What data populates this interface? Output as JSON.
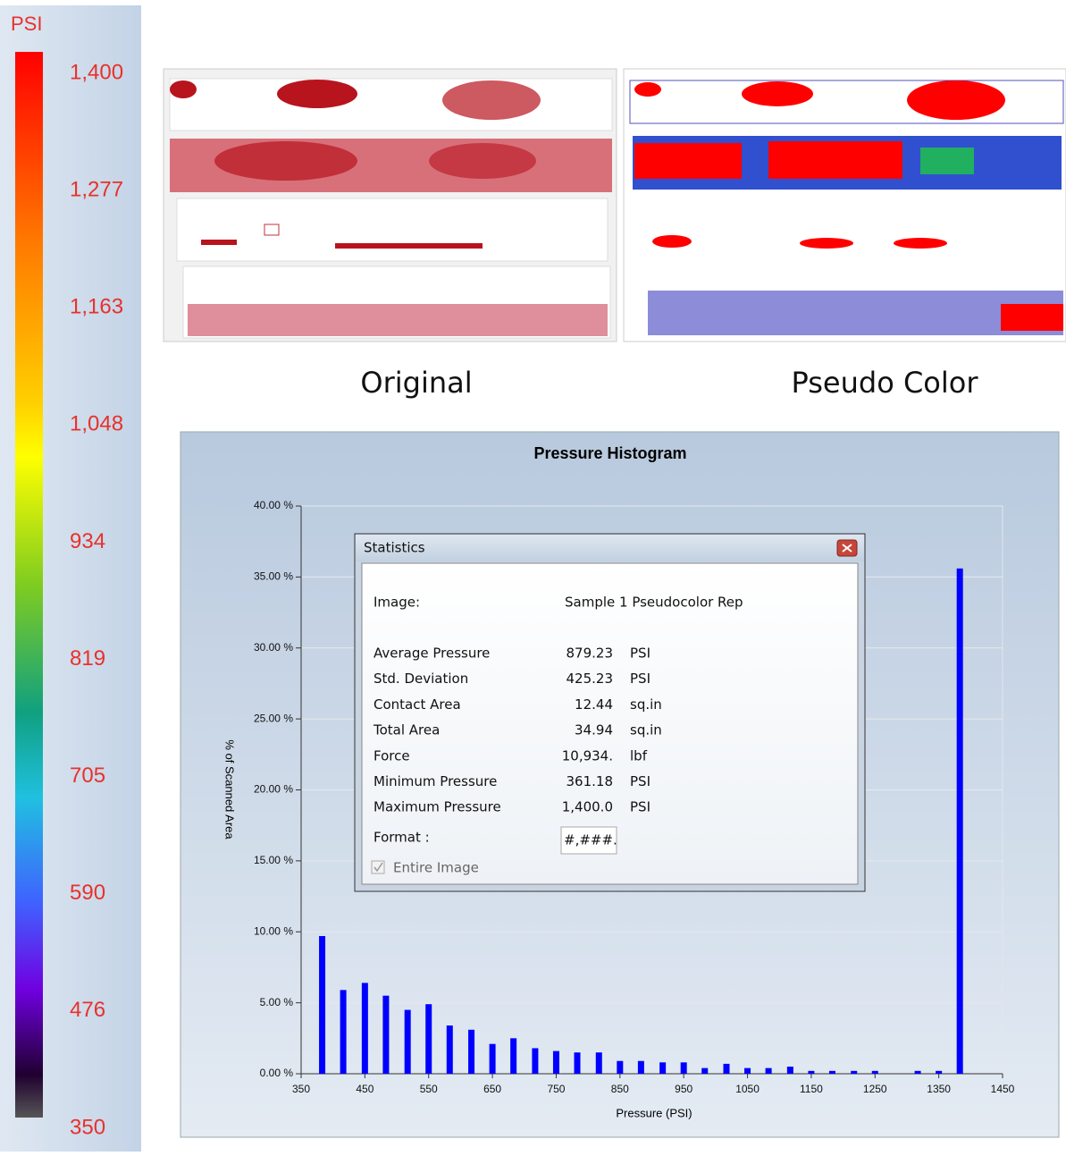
{
  "color_scale": {
    "unit": "PSI",
    "ticks": [
      {
        "value": 1400,
        "label": "1,400"
      },
      {
        "value": 1277,
        "label": "1,277"
      },
      {
        "value": 1163,
        "label": "1,163"
      },
      {
        "value": 1048,
        "label": "1,048"
      },
      934,
      819,
      705,
      590,
      476,
      350
    ]
  },
  "images": {
    "captions": [
      "Original",
      "Pseudo Color"
    ]
  },
  "chart_data": {
    "type": "bar",
    "title": "Pressure Histogram",
    "x_label": "Pressure (PSI)",
    "y_label": "% of Scanned Area",
    "x": [
      383,
      416,
      450,
      483,
      517,
      550,
      583,
      617,
      650,
      683,
      717,
      750,
      783,
      817,
      850,
      883,
      917,
      950,
      983,
      1017,
      1050,
      1083,
      1117,
      1150,
      1183,
      1217,
      1250,
      1317,
      1350,
      1383
    ],
    "values": [
      9.7,
      5.9,
      6.4,
      5.5,
      4.5,
      4.9,
      3.4,
      3.1,
      2.1,
      2.5,
      1.8,
      1.6,
      1.5,
      1.5,
      0.9,
      0.9,
      0.8,
      0.8,
      0.4,
      0.7,
      0.4,
      0.4,
      0.5,
      0.2,
      0.2,
      0.2,
      0.2,
      0.2,
      0.2,
      35.6
    ],
    "color": "#0000ff",
    "xlim": [
      350,
      1450
    ],
    "xticks": [
      350,
      450,
      550,
      650,
      750,
      850,
      950,
      1050,
      1150,
      1250,
      1350,
      1450
    ],
    "ylim": [
      0,
      40
    ],
    "yticks": [
      {
        "value": 0,
        "label": "0.00 %"
      },
      {
        "value": 5,
        "label": "5.00 %"
      },
      {
        "value": 10,
        "label": "10.00 %"
      },
      {
        "value": 15,
        "label": "15.00 %"
      },
      {
        "value": 20,
        "label": "20.00 %"
      },
      {
        "value": 25,
        "label": "25.00 %"
      },
      {
        "value": 30,
        "label": "30.00 %"
      },
      {
        "value": 35,
        "label": "35.00 %"
      },
      {
        "value": 40,
        "label": "40.00 %"
      }
    ],
    "grid": true
  },
  "statistics": {
    "title": "Statistics",
    "image_label": "Image:",
    "image_value": "Sample 1 Pseudocolor Rep",
    "rows": [
      [
        "Average Pressure",
        "879.23",
        "PSI"
      ],
      [
        "Std. Deviation",
        "425.23",
        "PSI"
      ],
      [
        "Contact Area",
        "12.44",
        "sq.in"
      ],
      [
        "Total Area",
        "34.94",
        "sq.in"
      ],
      [
        "Force",
        "10,934.",
        "lbf"
      ],
      [
        "Minimum Pressure",
        "361.18",
        "PSI"
      ],
      [
        "Maximum Pressure",
        "1,400.0",
        "PSI"
      ]
    ],
    "format_label": "Format :",
    "format_value": "#,###.#",
    "entire_image": "Entire Image"
  }
}
